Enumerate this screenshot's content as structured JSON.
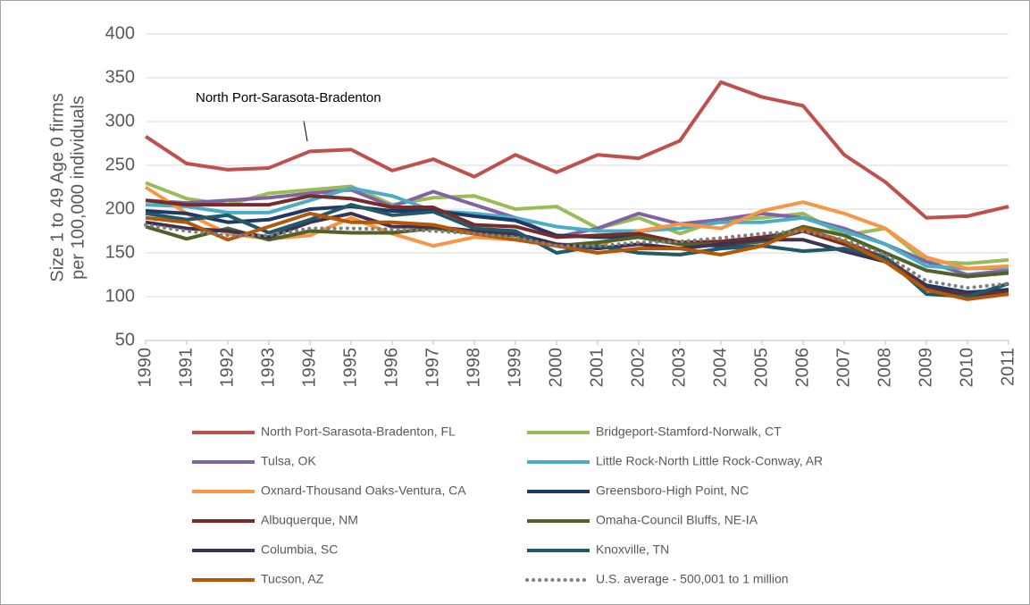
{
  "chart_data": {
    "type": "line",
    "ylabel": [
      "Size 1 to 49 Age 0 firms",
      "per 100,000 individuals"
    ],
    "annotation": "North Port-Sarasota-Bradenton",
    "categories": [
      "1990",
      "1991",
      "1992",
      "1993",
      "1994",
      "1995",
      "1996",
      "1997",
      "1998",
      "1999",
      "2000",
      "2001",
      "2002",
      "2003",
      "2004",
      "2005",
      "2006",
      "2007",
      "2008",
      "2009",
      "2010",
      "2011"
    ],
    "ylim": [
      50,
      400
    ],
    "yticks": [
      50,
      100,
      150,
      200,
      250,
      300,
      350,
      400
    ],
    "grid": true,
    "series": [
      {
        "name": "North Port-Sarasota-Bradenton, FL",
        "color": "#c0504d",
        "values": [
          283,
          252,
          245,
          247,
          266,
          268,
          244,
          257,
          237,
          262,
          242,
          262,
          258,
          278,
          345,
          328,
          318,
          262,
          231,
          190,
          192,
          203
        ]
      },
      {
        "name": "Bridgeport-Stamford-Norwalk, CT",
        "color": "#9bbb59",
        "values": [
          230,
          212,
          205,
          218,
          222,
          226,
          205,
          213,
          215,
          200,
          203,
          178,
          190,
          172,
          188,
          190,
          195,
          170,
          178,
          140,
          138,
          142
        ]
      },
      {
        "name": "Tulsa, OK",
        "color": "#8064a2",
        "values": [
          210,
          207,
          210,
          213,
          218,
          222,
          203,
          220,
          205,
          190,
          168,
          178,
          195,
          183,
          188,
          195,
          190,
          178,
          160,
          140,
          125,
          130
        ]
      },
      {
        "name": "Little Rock-North Little Rock-Conway, AR",
        "color": "#4bacc6",
        "values": [
          205,
          203,
          196,
          196,
          210,
          224,
          215,
          198,
          195,
          190,
          180,
          175,
          175,
          178,
          185,
          185,
          190,
          175,
          160,
          135,
          132,
          133
        ]
      },
      {
        "name": "Oxnard-Thousand Oaks-Ventura, CA",
        "color": "#f79646",
        "values": [
          225,
          195,
          172,
          166,
          170,
          190,
          172,
          158,
          168,
          165,
          160,
          158,
          175,
          183,
          178,
          198,
          208,
          195,
          178,
          145,
          132,
          135
        ]
      },
      {
        "name": "Greensboro-High Point, NC",
        "color": "#1f3864",
        "values": [
          198,
          195,
          185,
          188,
          200,
          203,
          198,
          198,
          192,
          187,
          170,
          168,
          168,
          160,
          158,
          163,
          175,
          163,
          143,
          113,
          105,
          108
        ]
      },
      {
        "name": "Albuquerque, NM",
        "color": "#772c2a",
        "values": [
          210,
          205,
          205,
          205,
          215,
          212,
          202,
          202,
          182,
          180,
          168,
          170,
          172,
          162,
          163,
          168,
          175,
          160,
          145,
          110,
          102,
          105
        ]
      },
      {
        "name": "Omaha-Council Bluffs, NE-IA",
        "color": "#4f6228",
        "values": [
          180,
          166,
          178,
          165,
          175,
          173,
          173,
          178,
          172,
          170,
          158,
          162,
          168,
          160,
          160,
          163,
          180,
          170,
          150,
          130,
          123,
          127
        ]
      },
      {
        "name": "Columbia, SC",
        "color": "#3f3151",
        "values": [
          185,
          178,
          175,
          168,
          185,
          195,
          180,
          180,
          175,
          172,
          160,
          155,
          160,
          155,
          160,
          165,
          165,
          152,
          140,
          110,
          100,
          103
        ]
      },
      {
        "name": "Knoxville, TN",
        "color": "#215968",
        "values": [
          195,
          188,
          193,
          173,
          188,
          205,
          193,
          197,
          178,
          175,
          150,
          158,
          150,
          148,
          155,
          158,
          152,
          155,
          145,
          103,
          100,
          115
        ]
      },
      {
        "name": "Tucson, AZ",
        "color": "#b65708",
        "values": [
          190,
          185,
          165,
          180,
          195,
          185,
          185,
          182,
          172,
          165,
          158,
          150,
          155,
          155,
          148,
          158,
          178,
          163,
          140,
          108,
          97,
          103
        ]
      },
      {
        "name": "U.S. average - 500,001 to 1 million",
        "color": "#7f7f7f",
        "dashed": true,
        "values": [
          182,
          175,
          170,
          170,
          178,
          178,
          177,
          175,
          172,
          168,
          158,
          158,
          162,
          163,
          167,
          172,
          175,
          165,
          148,
          118,
          110,
          115
        ]
      }
    ]
  }
}
